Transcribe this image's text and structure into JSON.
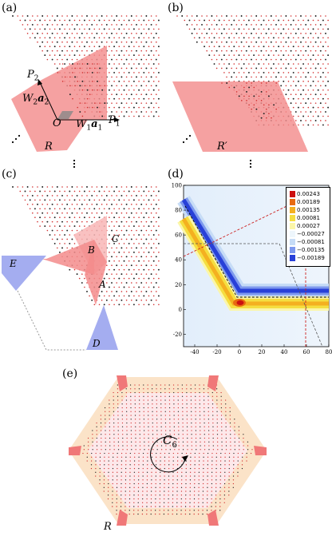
{
  "panels": {
    "a": {
      "label": "(a)",
      "region": "R",
      "o": "O",
      "p1": "P",
      "p1sub": "1",
      "p2": "P",
      "p2sub": "2",
      "w1": "W",
      "w1sub": "1",
      "a1": "a",
      "a1sub": "1",
      "w2": "W",
      "w2sub": "2",
      "a2": "a",
      "a2sub": "2"
    },
    "b": {
      "label": "(b)",
      "region": "R′"
    },
    "c": {
      "label": "(c)",
      "regions": [
        "A",
        "B",
        "C",
        "D",
        "E"
      ]
    },
    "d": {
      "label": "(d)"
    },
    "e": {
      "label": "(e)",
      "region": "R",
      "symmetry": "C",
      "symmetry_sub": "6"
    }
  },
  "colors": {
    "red_region": "#f38c8c",
    "blue_region": "#9aa4ee",
    "hex_outer": "#fbe3c8",
    "lattice_red": "#d23030",
    "lattice_black": "#222222"
  },
  "chart_data": {
    "type": "heatmap",
    "xlim": [
      -50,
      80
    ],
    "ylim": [
      -30,
      100
    ],
    "xticks": [
      "-40",
      "-20",
      "0",
      "20",
      "40",
      "60",
      "80"
    ],
    "yticks": [
      "100",
      "80",
      "60",
      "40",
      "20",
      "0",
      "-20"
    ],
    "legend_placement": "top-right",
    "colorbar": [
      {
        "label": "0.00243",
        "color": "#cc1010"
      },
      {
        "label": "0.00189",
        "color": "#e86a10"
      },
      {
        "label": "0.00135",
        "color": "#f4b020"
      },
      {
        "label": "0.00081",
        "color": "#f5de40"
      },
      {
        "label": "0.00027",
        "color": "#fbf6a8"
      },
      {
        "label": "−0.00027",
        "color": "#eef6fc"
      },
      {
        "label": "−0.00081",
        "color": "#c6dcf6"
      },
      {
        "label": "−0.00135",
        "color": "#7d98ee"
      },
      {
        "label": "−0.00189",
        "color": "#2840d8"
      }
    ]
  }
}
